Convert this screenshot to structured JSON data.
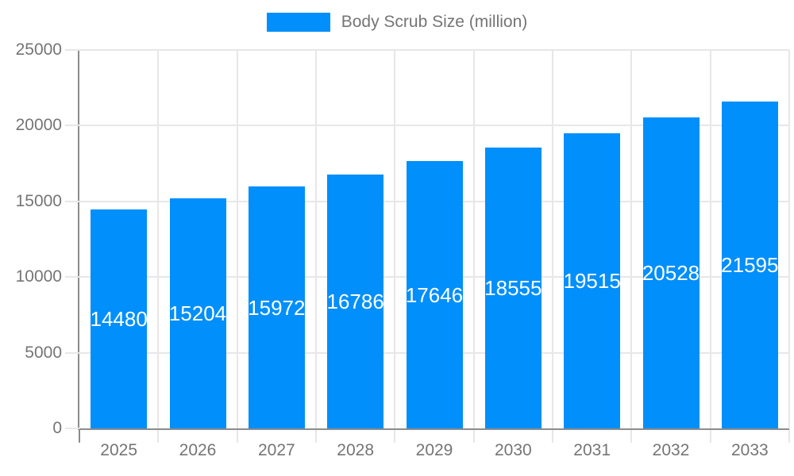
{
  "chart_data": {
    "type": "bar",
    "title": "",
    "legend_entries": [
      {
        "label": "Body Scrub Size (million)"
      }
    ],
    "legend_position": "top",
    "categories": [
      "2025",
      "2026",
      "2027",
      "2028",
      "2029",
      "2030",
      "2031",
      "2032",
      "2033"
    ],
    "values": [
      14480,
      15204,
      15972,
      16786,
      17646,
      18555,
      19515,
      20528,
      21595
    ],
    "bar_value_labels": [
      "14480",
      "15204",
      "15972",
      "16786",
      "17646",
      "18555",
      "19515",
      "20528",
      "21595"
    ],
    "xlabel": "",
    "ylabel": "",
    "ylim": [
      0,
      25000
    ],
    "y_ticks": [
      0,
      5000,
      10000,
      15000,
      20000,
      25000
    ],
    "y_tick_labels": [
      "0",
      "5000",
      "10000",
      "15000",
      "20000",
      "25000"
    ],
    "grid": true,
    "colors": {
      "bar": "#008FFB",
      "bar_value_text": "#ffffff",
      "grid_line": "#e7e7e7",
      "axis_line": "#8c8c8c",
      "axis_text": "#757575",
      "background": "#ffffff"
    }
  }
}
